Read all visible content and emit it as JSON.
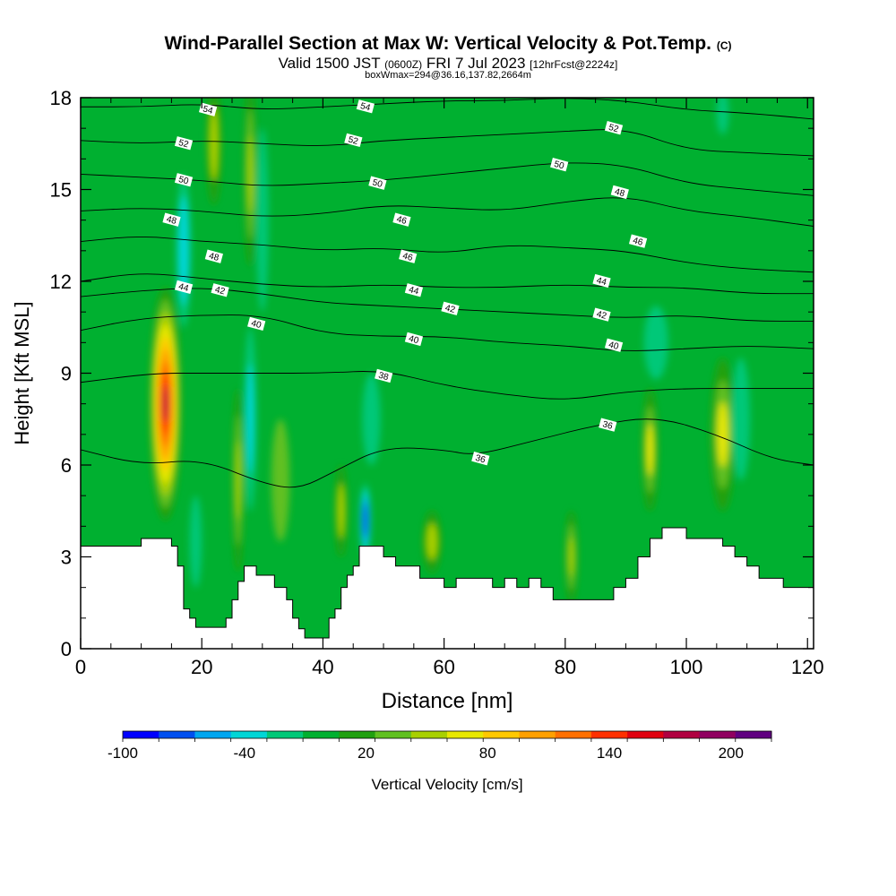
{
  "header": {
    "title_main": "Wind-Parallel Section at Max W: Vertical Velocity & Pot.Temp.",
    "title_suffix": "(C)",
    "valid_a": "Valid 1500 JST",
    "valid_b": "(0600Z)",
    "valid_c": "FRI 7 Jul 2023",
    "valid_d": "[12hrFcst@2224z]",
    "subline": "boxWmax=294@36.16,137.82,2664m"
  },
  "chart_data": {
    "type": "heatmap",
    "xlabel": "Distance [nm]",
    "ylabel": "Height [Kft MSL]",
    "xlim": [
      0,
      121
    ],
    "ylim": [
      0,
      18
    ],
    "x_ticks": [
      0,
      20,
      40,
      60,
      80,
      100,
      120
    ],
    "y_ticks": [
      0,
      3,
      6,
      9,
      12,
      15,
      18
    ],
    "colorbar": {
      "label": "Vertical Velocity [cm/s]",
      "min": -100,
      "max": 220,
      "step": 20,
      "tick_labels": [
        "-100",
        "-40",
        "20",
        "80",
        "140",
        "200"
      ],
      "colors": [
        "#0000ff",
        "#0050f0",
        "#00a6f0",
        "#00d6d6",
        "#00c878",
        "#00b030",
        "#20a010",
        "#60c020",
        "#a8d000",
        "#e8e800",
        "#ffc800",
        "#ffa000",
        "#ff7000",
        "#ff3000",
        "#e00010",
        "#b00040",
        "#900060",
        "#600080"
      ]
    },
    "terrain": [
      [
        0,
        3.35
      ],
      [
        4,
        3.35
      ],
      [
        8,
        3.35
      ],
      [
        10,
        3.6
      ],
      [
        12,
        3.6
      ],
      [
        14,
        3.6
      ],
      [
        15,
        3.35
      ],
      [
        16,
        2.7
      ],
      [
        17,
        1.3
      ],
      [
        18,
        1.0
      ],
      [
        19,
        0.7
      ],
      [
        20,
        0.7
      ],
      [
        22,
        0.7
      ],
      [
        24,
        1.0
      ],
      [
        25,
        1.6
      ],
      [
        26,
        2.2
      ],
      [
        27,
        2.7
      ],
      [
        28,
        2.7
      ],
      [
        29,
        2.4
      ],
      [
        30,
        2.4
      ],
      [
        32,
        2.0
      ],
      [
        34,
        1.6
      ],
      [
        35,
        1.0
      ],
      [
        36,
        0.65
      ],
      [
        37,
        0.35
      ],
      [
        38,
        0.35
      ],
      [
        40,
        0.35
      ],
      [
        41,
        1.0
      ],
      [
        42,
        1.3
      ],
      [
        43,
        2.0
      ],
      [
        44,
        2.4
      ],
      [
        45,
        2.7
      ],
      [
        46,
        3.35
      ],
      [
        48,
        3.35
      ],
      [
        50,
        3.0
      ],
      [
        52,
        2.7
      ],
      [
        54,
        2.7
      ],
      [
        56,
        2.3
      ],
      [
        58,
        2.3
      ],
      [
        60,
        2.0
      ],
      [
        62,
        2.3
      ],
      [
        66,
        2.3
      ],
      [
        68,
        2.0
      ],
      [
        70,
        2.3
      ],
      [
        72,
        2.0
      ],
      [
        74,
        2.3
      ],
      [
        76,
        2.0
      ],
      [
        78,
        1.6
      ],
      [
        82,
        1.6
      ],
      [
        86,
        1.6
      ],
      [
        88,
        2.0
      ],
      [
        90,
        2.3
      ],
      [
        92,
        3.0
      ],
      [
        94,
        3.6
      ],
      [
        96,
        3.95
      ],
      [
        98,
        3.95
      ],
      [
        100,
        3.6
      ],
      [
        104,
        3.6
      ],
      [
        106,
        3.35
      ],
      [
        108,
        3.0
      ],
      [
        110,
        2.7
      ],
      [
        112,
        2.3
      ],
      [
        114,
        2.3
      ],
      [
        116,
        2.0
      ],
      [
        121,
        2.0
      ]
    ],
    "velocity_features": [
      {
        "x": 14,
        "y": 8.0,
        "rx": 2.6,
        "ry": 3.8,
        "value": 200
      },
      {
        "x": 26,
        "y": 5.5,
        "rx": 0.9,
        "ry": 3.0,
        "value": 70
      },
      {
        "x": 22,
        "y": 16.5,
        "rx": 1.2,
        "ry": 2.0,
        "value": 60
      },
      {
        "x": 28,
        "y": 15.5,
        "rx": 1.0,
        "ry": 3.0,
        "value": 70
      },
      {
        "x": 43,
        "y": 4.5,
        "rx": 1.0,
        "ry": 1.5,
        "value": 60
      },
      {
        "x": 58,
        "y": 3.5,
        "rx": 1.5,
        "ry": 1.0,
        "value": 60
      },
      {
        "x": 81,
        "y": 3.0,
        "rx": 1.0,
        "ry": 1.5,
        "value": 70
      },
      {
        "x": 94,
        "y": 6.5,
        "rx": 1.3,
        "ry": 2.0,
        "value": 80
      },
      {
        "x": 106,
        "y": 7.0,
        "rx": 2.0,
        "ry": 2.5,
        "value": 80
      },
      {
        "x": 33,
        "y": 5.5,
        "rx": 1.5,
        "ry": 2.0,
        "value": 40
      },
      {
        "x": 17,
        "y": 13.0,
        "rx": 1.2,
        "ry": 2.5,
        "value": -40
      },
      {
        "x": 19,
        "y": 3.5,
        "rx": 1.0,
        "ry": 1.5,
        "value": -20
      },
      {
        "x": 28,
        "y": 7.5,
        "rx": 1.0,
        "ry": 3.0,
        "value": -30
      },
      {
        "x": 30,
        "y": 14.0,
        "rx": 1.0,
        "ry": 3.0,
        "value": -20
      },
      {
        "x": 47,
        "y": 4.2,
        "rx": 0.9,
        "ry": 1.2,
        "value": -80
      },
      {
        "x": 48,
        "y": 7.5,
        "rx": 1.5,
        "ry": 1.5,
        "value": -10
      },
      {
        "x": 109,
        "y": 7.5,
        "rx": 1.5,
        "ry": 2.0,
        "value": -20
      },
      {
        "x": 95,
        "y": 10.0,
        "rx": 2.0,
        "ry": 1.2,
        "value": -10
      },
      {
        "x": 106,
        "y": 17.5,
        "rx": 1.0,
        "ry": 0.7,
        "value": -20
      }
    ],
    "theta_contours": [
      {
        "label": "38",
        "points": [
          [
            0,
            8.7
          ],
          [
            12,
            9.0
          ],
          [
            20,
            9.0
          ],
          [
            30,
            9.0
          ],
          [
            40,
            9.0
          ],
          [
            50,
            9.1
          ],
          [
            60,
            8.6
          ],
          [
            70,
            8.3
          ],
          [
            80,
            8.1
          ],
          [
            90,
            8.4
          ],
          [
            100,
            8.5
          ],
          [
            110,
            8.5
          ],
          [
            121,
            8.5
          ]
        ],
        "labels_at": [
          [
            50,
            8.9
          ]
        ]
      },
      {
        "label": "36",
        "points": [
          [
            0,
            6.5
          ],
          [
            10,
            6.0
          ],
          [
            20,
            6.2
          ],
          [
            30,
            5.4
          ],
          [
            36,
            5.2
          ],
          [
            42,
            5.8
          ],
          [
            50,
            6.6
          ],
          [
            60,
            6.5
          ],
          [
            65,
            6.3
          ],
          [
            75,
            6.8
          ],
          [
            85,
            7.3
          ],
          [
            95,
            7.6
          ],
          [
            105,
            7.0
          ],
          [
            114,
            6.2
          ],
          [
            121,
            6.0
          ]
        ],
        "labels_at": [
          [
            66,
            6.2
          ],
          [
            87,
            7.3
          ]
        ]
      },
      {
        "label": "40",
        "points": [
          [
            0,
            10.4
          ],
          [
            10,
            10.8
          ],
          [
            20,
            10.9
          ],
          [
            30,
            10.9
          ],
          [
            40,
            10.3
          ],
          [
            50,
            10.2
          ],
          [
            60,
            10.2
          ],
          [
            70,
            10.0
          ],
          [
            80,
            9.9
          ],
          [
            90,
            9.7
          ],
          [
            100,
            9.8
          ],
          [
            110,
            9.9
          ],
          [
            121,
            9.8
          ]
        ],
        "labels_at": [
          [
            29,
            10.6
          ],
          [
            55,
            10.1
          ],
          [
            88,
            9.9
          ]
        ]
      },
      {
        "label": "42",
        "points": [
          [
            0,
            11.5
          ],
          [
            10,
            11.7
          ],
          [
            20,
            11.8
          ],
          [
            30,
            11.6
          ],
          [
            40,
            11.3
          ],
          [
            50,
            11.2
          ],
          [
            60,
            11.1
          ],
          [
            70,
            11.0
          ],
          [
            80,
            10.9
          ],
          [
            90,
            10.8
          ],
          [
            100,
            10.9
          ],
          [
            110,
            10.7
          ],
          [
            121,
            10.7
          ]
        ],
        "labels_at": [
          [
            23,
            11.7
          ],
          [
            61,
            11.1
          ],
          [
            86,
            10.9
          ]
        ]
      },
      {
        "label": "44",
        "points": [
          [
            0,
            12.0
          ],
          [
            10,
            12.3
          ],
          [
            20,
            12.1
          ],
          [
            30,
            11.9
          ],
          [
            40,
            11.8
          ],
          [
            50,
            11.9
          ],
          [
            60,
            11.8
          ],
          [
            70,
            11.8
          ],
          [
            80,
            11.9
          ],
          [
            90,
            11.8
          ],
          [
            100,
            11.8
          ],
          [
            110,
            11.6
          ],
          [
            121,
            11.6
          ]
        ],
        "labels_at": [
          [
            17,
            11.8
          ],
          [
            55,
            11.7
          ],
          [
            86,
            12.0
          ]
        ]
      },
      {
        "label": "46",
        "points": [
          [
            0,
            13.3
          ],
          [
            10,
            13.5
          ],
          [
            20,
            13.3
          ],
          [
            30,
            13.2
          ],
          [
            40,
            13.0
          ],
          [
            50,
            13.1
          ],
          [
            60,
            12.9
          ],
          [
            70,
            13.2
          ],
          [
            80,
            13.1
          ],
          [
            90,
            13.0
          ],
          [
            100,
            12.6
          ],
          [
            110,
            12.4
          ],
          [
            121,
            12.3
          ]
        ],
        "labels_at": [
          [
            53,
            14.0
          ],
          [
            54,
            12.8
          ],
          [
            92,
            13.3
          ]
        ]
      },
      {
        "label": "48",
        "points": [
          [
            0,
            14.3
          ],
          [
            10,
            14.4
          ],
          [
            20,
            14.3
          ],
          [
            30,
            14.1
          ],
          [
            40,
            14.2
          ],
          [
            50,
            14.5
          ],
          [
            60,
            14.4
          ],
          [
            70,
            14.3
          ],
          [
            80,
            14.6
          ],
          [
            90,
            14.8
          ],
          [
            100,
            14.3
          ],
          [
            110,
            14.1
          ],
          [
            121,
            13.8
          ]
        ],
        "labels_at": [
          [
            15,
            14.0
          ],
          [
            22,
            12.8
          ],
          [
            89,
            14.9
          ]
        ]
      },
      {
        "label": "50",
        "points": [
          [
            0,
            15.5
          ],
          [
            10,
            15.4
          ],
          [
            20,
            15.3
          ],
          [
            30,
            15.1
          ],
          [
            40,
            15.2
          ],
          [
            50,
            15.3
          ],
          [
            60,
            15.5
          ],
          [
            70,
            15.7
          ],
          [
            80,
            15.9
          ],
          [
            90,
            15.8
          ],
          [
            100,
            15.2
          ],
          [
            110,
            15.0
          ],
          [
            121,
            14.8
          ]
        ],
        "labels_at": [
          [
            17,
            15.3
          ],
          [
            49,
            15.2
          ],
          [
            79,
            15.8
          ]
        ]
      },
      {
        "label": "52",
        "points": [
          [
            0,
            16.6
          ],
          [
            10,
            16.5
          ],
          [
            20,
            16.6
          ],
          [
            30,
            16.5
          ],
          [
            40,
            16.4
          ],
          [
            50,
            16.6
          ],
          [
            60,
            16.7
          ],
          [
            70,
            16.8
          ],
          [
            80,
            16.9
          ],
          [
            90,
            17.0
          ],
          [
            100,
            16.3
          ],
          [
            110,
            16.2
          ],
          [
            121,
            16.1
          ]
        ],
        "labels_at": [
          [
            17,
            16.5
          ],
          [
            45,
            16.6
          ],
          [
            88,
            17.0
          ]
        ]
      },
      {
        "label": "54",
        "points": [
          [
            0,
            17.7
          ],
          [
            10,
            17.7
          ],
          [
            20,
            17.8
          ],
          [
            30,
            17.6
          ],
          [
            40,
            17.7
          ],
          [
            50,
            17.8
          ],
          [
            60,
            17.9
          ],
          [
            70,
            17.9
          ],
          [
            80,
            18.0
          ],
          [
            90,
            17.9
          ],
          [
            100,
            17.6
          ],
          [
            110,
            17.5
          ],
          [
            121,
            17.3
          ]
        ],
        "labels_at": [
          [
            21,
            17.6
          ],
          [
            47,
            17.7
          ]
        ]
      }
    ]
  }
}
